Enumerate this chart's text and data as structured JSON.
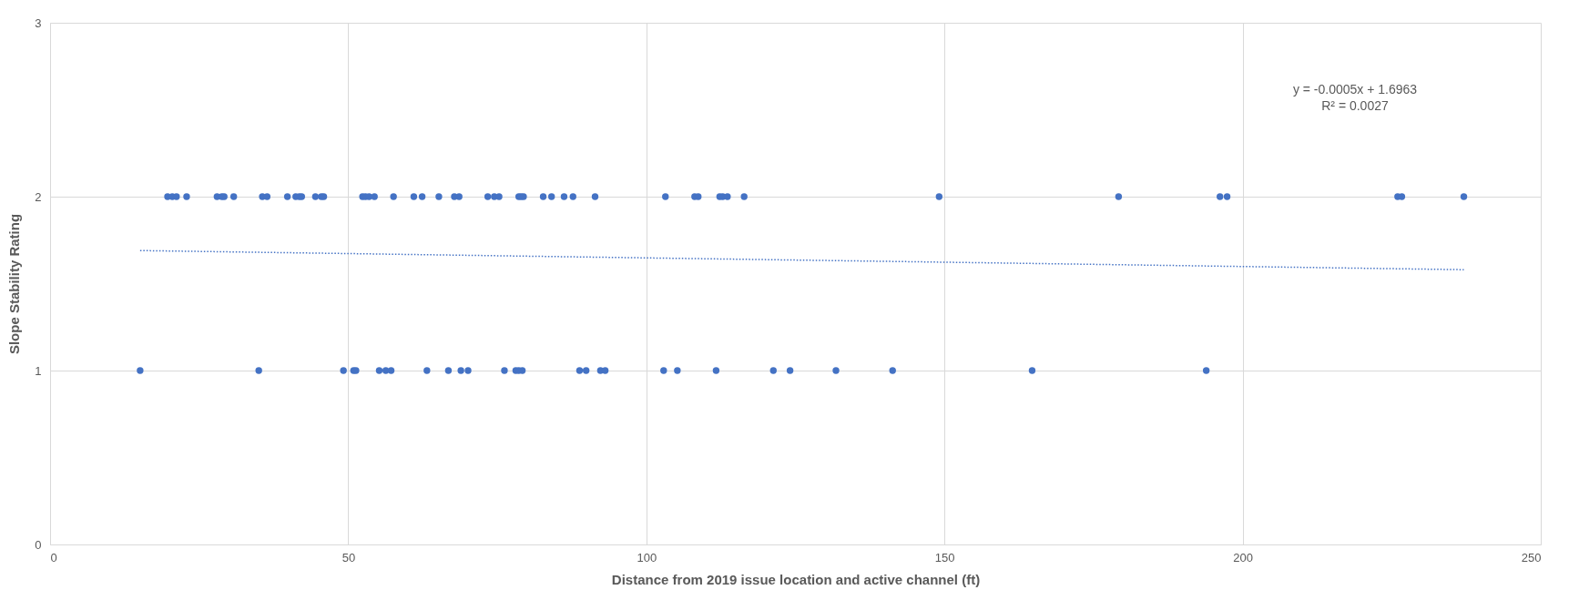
{
  "chart_data": {
    "type": "scatter",
    "xlabel": "Distance from 2019 issue location and active channel (ft)",
    "ylabel": "Slope Stability Rating",
    "xlim": [
      0,
      250
    ],
    "ylim": [
      0,
      3
    ],
    "xticks": [
      0,
      50,
      100,
      150,
      200,
      250
    ],
    "yticks": [
      0,
      1,
      2,
      3
    ],
    "grid": true,
    "marker": "circle",
    "series": [
      {
        "color": "#4472c4",
        "x": [
          19.7,
          20.5,
          21.2,
          22.9,
          28.0,
          28.8,
          29.2,
          30.8,
          35.6,
          36.4,
          39.8,
          41.2,
          41.8,
          42.2,
          44.5,
          45.5,
          45.9,
          52.4,
          52.9,
          53.5,
          54.4,
          57.6,
          61.0,
          62.4,
          65.2,
          67.8,
          68.6,
          73.4,
          74.5,
          75.3,
          78.6,
          79.0,
          79.4,
          82.7,
          84.1,
          86.2,
          87.7,
          91.4,
          103.2,
          108.1,
          108.7,
          112.3,
          112.8,
          113.6,
          116.4,
          149.1,
          179.2,
          196.2,
          197.4,
          226.0,
          226.7,
          237.1,
          15.1,
          35.0,
          49.2,
          50.9,
          51.3,
          55.2,
          56.3,
          57.2,
          63.2,
          66.8,
          68.9,
          70.1,
          76.2,
          78.1,
          78.6,
          79.2,
          88.8,
          89.9,
          92.3,
          93.1,
          102.9,
          105.2,
          111.7,
          121.3,
          124.1,
          131.8,
          141.3,
          164.7,
          193.9
        ],
        "values": [
          2,
          2,
          2,
          2,
          2,
          2,
          2,
          2,
          2,
          2,
          2,
          2,
          2,
          2,
          2,
          2,
          2,
          2,
          2,
          2,
          2,
          2,
          2,
          2,
          2,
          2,
          2,
          2,
          2,
          2,
          2,
          2,
          2,
          2,
          2,
          2,
          2,
          2,
          2,
          2,
          2,
          2,
          2,
          2,
          2,
          2,
          2,
          2,
          2,
          2,
          2,
          2,
          1,
          1,
          1,
          1,
          1,
          1,
          1,
          1,
          1,
          1,
          1,
          1,
          1,
          1,
          1,
          1,
          1,
          1,
          1,
          1,
          1,
          1,
          1,
          1,
          1,
          1,
          1,
          1,
          1
        ]
      },
      {
        "type": "line",
        "color": "#4472c4",
        "line_style": "dotted",
        "marker": "none",
        "x": [
          15.1,
          237.1
        ],
        "values": [
          1.69,
          1.58
        ]
      }
    ],
    "annotations": [
      "y = -0.0005x + 1.6963",
      "R² = 0.0027"
    ]
  }
}
